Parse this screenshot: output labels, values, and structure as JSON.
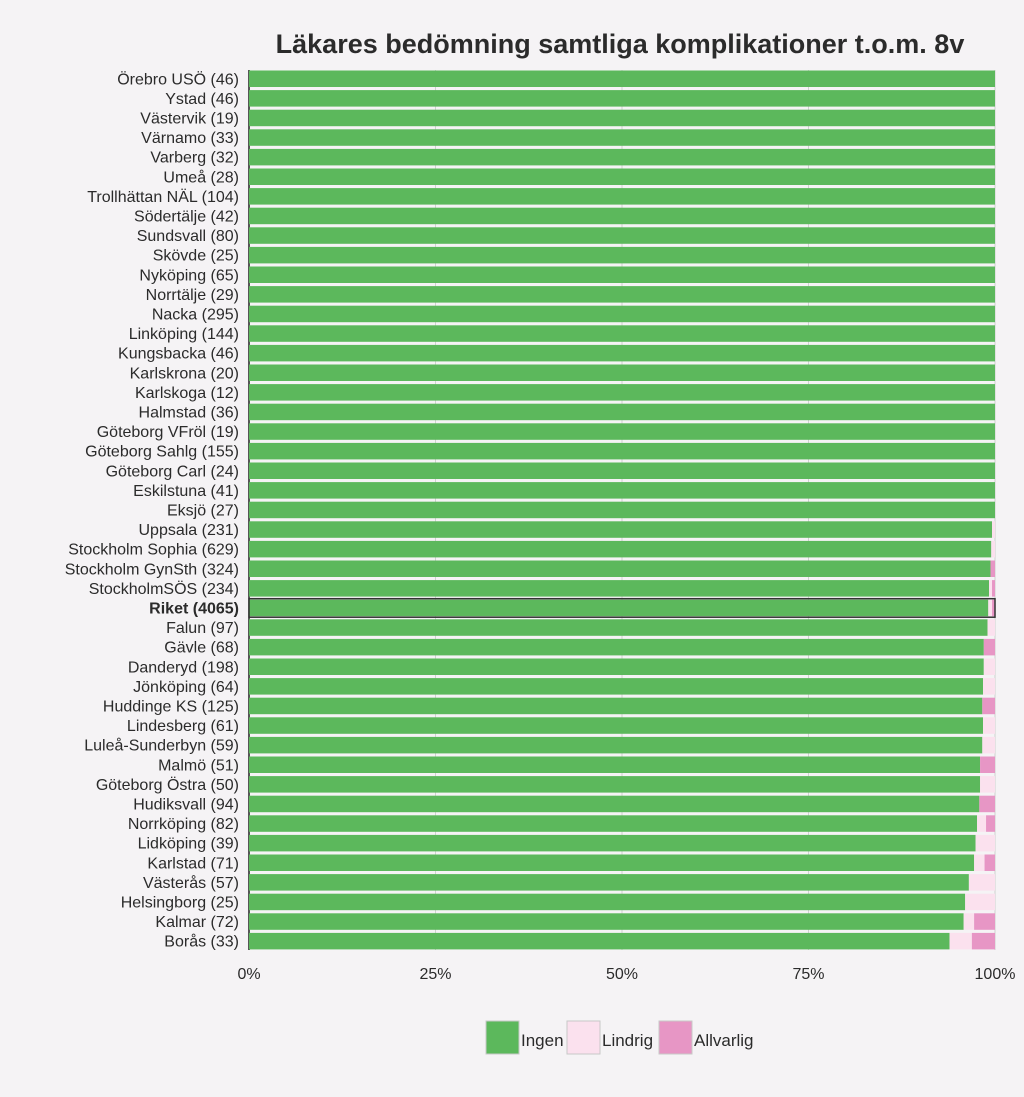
{
  "chart_data": {
    "type": "bar",
    "orientation": "horizontal",
    "stacked": true,
    "normalized": true,
    "title": "Läkares bedömning samtliga komplikationer t.o.m. 8v",
    "xlabel": "",
    "ylabel": "",
    "xlim": [
      0,
      100
    ],
    "x_ticks": [
      "0%",
      "25%",
      "50%",
      "75%",
      "100%"
    ],
    "x_tick_values": [
      0,
      25,
      50,
      75,
      100
    ],
    "grid": true,
    "legend_position": "bottom",
    "highlight_category": "Riket (4065)",
    "categories": [
      "Örebro USÖ (46)",
      "Ystad (46)",
      "Västervik (19)",
      "Värnamo (33)",
      "Varberg (32)",
      "Umeå (28)",
      "Trollhättan NÄL (104)",
      "Södertälje (42)",
      "Sundsvall (80)",
      "Skövde (25)",
      "Nyköping (65)",
      "Norrtälje (29)",
      "Nacka (295)",
      "Linköping (144)",
      "Kungsbacka (46)",
      "Karlskrona (20)",
      "Karlskoga (12)",
      "Halmstad (36)",
      "Göteborg VFröl (19)",
      "Göteborg Sahlg (155)",
      "Göteborg Carl (24)",
      "Eskilstuna (41)",
      "Eksjö (27)",
      "Uppsala (231)",
      "Stockholm Sophia (629)",
      "Stockholm GynSth (324)",
      "StockholmSÖS (234)",
      "Riket (4065)",
      "Falun (97)",
      "Gävle (68)",
      "Danderyd (198)",
      "Jönköping (64)",
      "Huddinge KS (125)",
      "Lindesberg (61)",
      "Luleå-Sunderbyn (59)",
      "Malmö (51)",
      "Göteborg Östra (50)",
      "Hudiksvall (94)",
      "Norrköping (82)",
      "Lidköping (39)",
      "Karlstad (71)",
      "Västerås (57)",
      "Helsingborg (25)",
      "Kalmar (72)",
      "Borås (33)"
    ],
    "series": [
      {
        "name": "Ingen",
        "color": "#5cb85c",
        "values": [
          100,
          100,
          100,
          100,
          100,
          100,
          100,
          100,
          100,
          100,
          100,
          100,
          100,
          100,
          100,
          100,
          100,
          100,
          100,
          100,
          100,
          100,
          100,
          99.6,
          99.5,
          99.4,
          99.2,
          99.1,
          99.0,
          98.5,
          98.5,
          98.4,
          98.3,
          98.4,
          98.3,
          98.0,
          98.0,
          97.9,
          97.6,
          97.4,
          97.2,
          96.5,
          96.0,
          95.8,
          93.9
        ]
      },
      {
        "name": "Lindrig",
        "color": "#fbe1ee",
        "values": [
          0,
          0,
          0,
          0,
          0,
          0,
          0,
          0,
          0,
          0,
          0,
          0,
          0,
          0,
          0,
          0,
          0,
          0,
          0,
          0,
          0,
          0,
          0,
          0.4,
          0.5,
          0,
          0.4,
          0.5,
          1.0,
          0,
          1.5,
          1.6,
          0,
          1.6,
          1.7,
          0,
          2.0,
          0,
          1.2,
          2.6,
          1.4,
          3.5,
          4.0,
          1.4,
          3.0
        ]
      },
      {
        "name": "Allvarlig",
        "color": "#e796c5",
        "values": [
          0,
          0,
          0,
          0,
          0,
          0,
          0,
          0,
          0,
          0,
          0,
          0,
          0,
          0,
          0,
          0,
          0,
          0,
          0,
          0,
          0,
          0,
          0,
          0,
          0,
          0.6,
          0.4,
          0.4,
          0,
          1.5,
          0,
          0,
          1.7,
          0,
          0,
          2.0,
          0,
          2.1,
          1.2,
          0,
          1.4,
          0,
          0,
          2.8,
          3.1
        ]
      }
    ]
  }
}
